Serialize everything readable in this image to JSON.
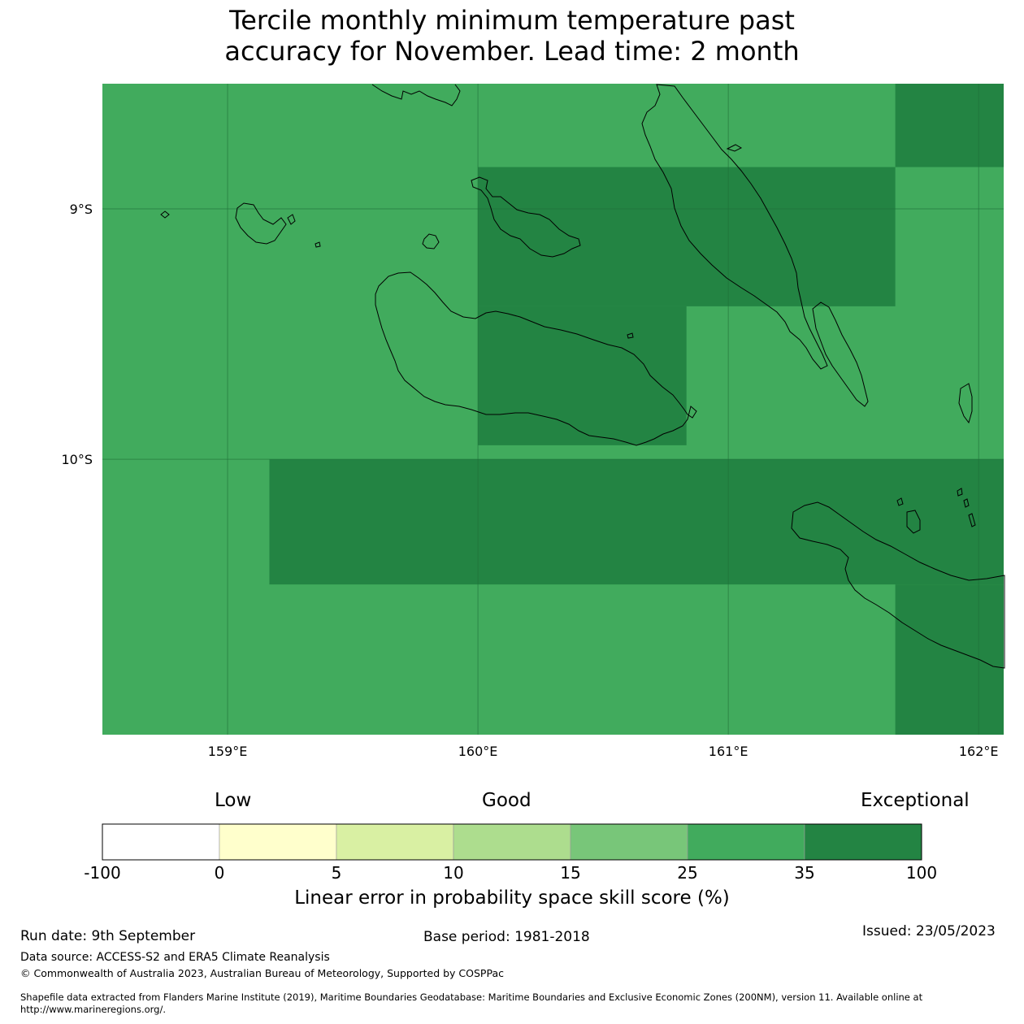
{
  "title_line1": "Tercile monthly minimum temperature past",
  "title_line2": "accuracy for November. Lead time: 2 month",
  "map": {
    "lon_range": [
      158.5,
      162.1
    ],
    "lat_range": [
      -11.1,
      -8.5
    ],
    "x_ticks": [
      {
        "value": 159,
        "label": "159°E"
      },
      {
        "value": 160,
        "label": "160°E"
      },
      {
        "value": 161,
        "label": "161°E"
      },
      {
        "value": 162,
        "label": "162°E"
      }
    ],
    "y_ticks": [
      {
        "value": -9,
        "label": "9°S"
      },
      {
        "value": -10,
        "label": "10°S"
      }
    ],
    "background_color": "#41ab5d",
    "cells_35_to_100": [
      {
        "lon": [
          160.0,
          161.667
        ],
        "lat": [
          -9.389,
          -8.833
        ]
      },
      {
        "lon": [
          161.667,
          162.1
        ],
        "lat": [
          -8.833,
          -8.5
        ]
      },
      {
        "lon": [
          160.0,
          160.833
        ],
        "lat": [
          -9.944,
          -9.389
        ]
      },
      {
        "lon": [
          159.167,
          162.1
        ],
        "lat": [
          -10.5,
          -10.0
        ]
      },
      {
        "lon": [
          161.667,
          162.1
        ],
        "lat": [
          -11.1,
          -10.5
        ]
      }
    ],
    "dark_color": "#238443"
  },
  "colorbar": {
    "category_low": "Low",
    "category_good": "Good",
    "category_exceptional": "Exceptional",
    "bins": [
      {
        "from": "-100",
        "to": "0",
        "color": "#ffffff"
      },
      {
        "from": "0",
        "to": "5",
        "color": "#ffffcc"
      },
      {
        "from": "5",
        "to": "10",
        "color": "#d9f0a3"
      },
      {
        "from": "10",
        "to": "15",
        "color": "#addd8e"
      },
      {
        "from": "15",
        "to": "25",
        "color": "#78c679"
      },
      {
        "from": "25",
        "to": "35",
        "color": "#41ab5d"
      },
      {
        "from": "35",
        "to": "100",
        "color": "#238443"
      }
    ],
    "ticks": [
      "-100",
      "0",
      "5",
      "10",
      "15",
      "25",
      "35",
      "100"
    ],
    "label": "Linear error in probability space skill score (%)"
  },
  "footer": {
    "run_date": "Run date: 9th September",
    "base_period": "Base period: 1981-2018",
    "issued": "Issued: 23/05/2023",
    "data_source": "Data source: ACCESS-S2 and ERA5 Climate Reanalysis",
    "copyright": "© Commonwealth of Australia 2023, Australian Bureau of Meteorology, Supported by COSPPac",
    "shapefile_line1": "Shapefile data extracted from Flanders Marine Institute (2019), Maritime Boundaries Geodatabase: Maritime Boundaries and Exclusive Economic Zones (200NM), version 11. Available online at",
    "shapefile_line2": "http://www.marineregions.org/."
  }
}
